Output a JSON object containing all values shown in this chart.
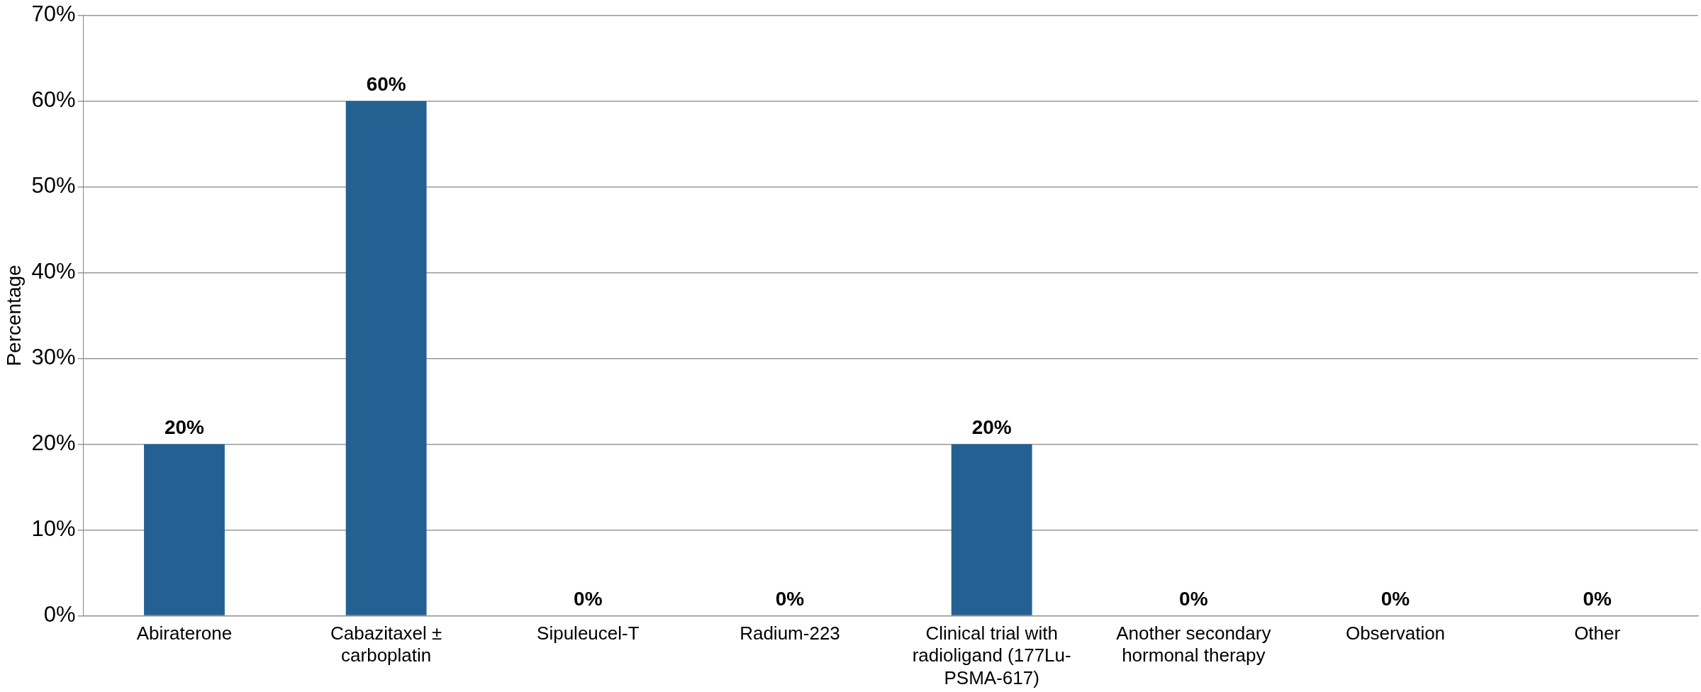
{
  "chart_data": {
    "type": "bar",
    "ylabel": "Percentage",
    "categories": [
      "Abiraterone",
      "Cabazitaxel ± carboplatin",
      "Sipuleucel-T",
      "Radium-223",
      "Clinical trial with radioligand (177Lu-PSMA-617)",
      "Another secondary hormonal therapy",
      "Observation",
      "Other"
    ],
    "values": [
      20,
      60,
      0,
      0,
      20,
      0,
      0,
      0
    ],
    "value_labels": [
      "20%",
      "60%",
      "0%",
      "0%",
      "20%",
      "0%",
      "0%",
      "0%"
    ],
    "color": "#246192",
    "ylim": [
      0,
      70
    ],
    "yticks": [
      {
        "value": 0,
        "label": "0%"
      },
      {
        "value": 10,
        "label": "10%"
      },
      {
        "value": 20,
        "label": "20%"
      },
      {
        "value": 30,
        "label": "30%"
      },
      {
        "value": 40,
        "label": "40%"
      },
      {
        "value": 50,
        "label": "50%"
      },
      {
        "value": 60,
        "label": "60%"
      },
      {
        "value": 70,
        "label": "70%"
      }
    ],
    "grid": "y",
    "legend": false
  }
}
